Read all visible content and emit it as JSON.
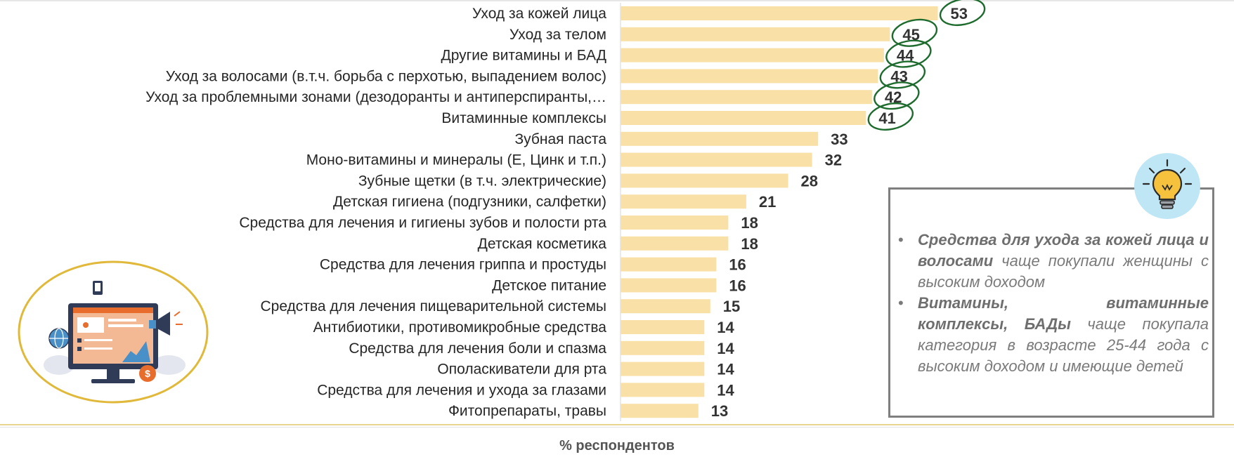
{
  "chart_data": {
    "type": "bar",
    "orientation": "horizontal",
    "categories": [
      "Уход за кожей лица",
      "Уход за телом",
      "Другие витамины и БАД",
      "Уход за волосами (в.т.ч. борьба с перхотью, выпадением волос)",
      "Уход за проблемными зонами (дезодоранты и антиперспиранты,…",
      "Витаминные комплексы",
      "Зубная паста",
      "Моно-витамины и минералы (Е, Цинк и т.п.)",
      "Зубные щетки (в т.ч. электрические)",
      "Детская гигиена (подгузники, салфетки)",
      "Средства для лечения и гигиены зубов и полости рта",
      "Детская косметика",
      "Средства для лечения гриппа и простуды",
      "Детское питание",
      "Средства для лечения пищеварительной системы",
      "Антибиотики, противомикробные средства",
      "Средства для лечения боли и спазма",
      "Ополаскиватели для рта",
      "Средства для лечения и ухода за глазами",
      "Фитопрепараты, травы"
    ],
    "values": [
      53,
      45,
      44,
      43,
      42,
      41,
      33,
      32,
      28,
      21,
      18,
      18,
      16,
      16,
      15,
      14,
      14,
      14,
      14,
      13
    ],
    "circled": [
      true,
      true,
      true,
      true,
      true,
      true,
      false,
      false,
      false,
      false,
      false,
      false,
      false,
      false,
      false,
      false,
      false,
      false,
      false,
      false
    ],
    "xlabel": "% респондентов",
    "bar_color": "#f8e0a6",
    "circle_color": "#1e6b2e",
    "label_color": "#262626",
    "value_color": "#333333"
  },
  "notes": {
    "items": [
      {
        "bullet": "•",
        "bold": "Средства для  ухода за кожей лица и волосами",
        "rest": " чаще покупали женщины с высоким доходом"
      },
      {
        "bullet": "•",
        "bold": "Витамины, витаминные комплексы, БАДы",
        "rest": " чаще покупала категория в возрасте 25-44 года с высоким доходом и имеющие детей"
      }
    ]
  },
  "icons": {
    "bulb": "lightbulb-icon",
    "illustration": "marketing-monitor-illustration",
    "dollar": "dollar-icon",
    "megaphone": "megaphone-icon",
    "globe": "globe-icon"
  },
  "colors": {
    "bulb_bg": "#bfe6f5",
    "bulb_fill": "#f6c23e",
    "illus_ring": "#e0b93a",
    "monitor": "#2f3b57",
    "screen": "#f3b894"
  }
}
